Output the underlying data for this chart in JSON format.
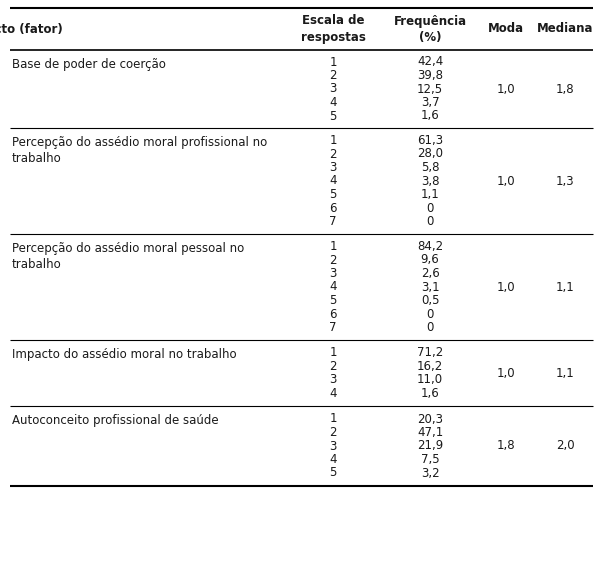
{
  "col_headers": [
    "Aspecto (fator)",
    "Escala de\nrespostas",
    "Frequência\n(%)",
    "Moda",
    "Mediana"
  ],
  "col_header_align": [
    "center",
    "center",
    "center",
    "center",
    "center"
  ],
  "rows": [
    {
      "aspecto": "Base de poder de coerção",
      "escala": [
        "1",
        "2",
        "3",
        "4",
        "5"
      ],
      "frequencia": [
        "42,4",
        "39,8",
        "12,5",
        "3,7",
        "1,6"
      ],
      "moda": "1,0",
      "mediana": "1,8"
    },
    {
      "aspecto": "Percepção do assédio moral profissional no\ntrabalho",
      "escala": [
        "1",
        "2",
        "3",
        "4",
        "5",
        "6",
        "7"
      ],
      "frequencia": [
        "61,3",
        "28,0",
        "5,8",
        "3,8",
        "1,1",
        "0",
        "0"
      ],
      "moda": "1,0",
      "mediana": "1,3"
    },
    {
      "aspecto": "Percepção do assédio moral pessoal no\ntrabalho",
      "escala": [
        "1",
        "2",
        "3",
        "4",
        "5",
        "6",
        "7"
      ],
      "frequencia": [
        "84,2",
        "9,6",
        "2,6",
        "3,1",
        "0,5",
        "0",
        "0"
      ],
      "moda": "1,0",
      "mediana": "1,1"
    },
    {
      "aspecto": "Impacto do assédio moral no trabalho",
      "escala": [
        "1",
        "2",
        "3",
        "4"
      ],
      "frequencia": [
        "71,2",
        "16,2",
        "11,0",
        "1,6"
      ],
      "moda": "1,0",
      "mediana": "1,1"
    },
    {
      "aspecto": "Autoconceito profissional de saúde",
      "escala": [
        "1",
        "2",
        "3",
        "4",
        "5"
      ],
      "frequencia": [
        "20,3",
        "47,1",
        "21,9",
        "7,5",
        "3,2"
      ],
      "moda": "1,8",
      "mediana": "2,0"
    }
  ],
  "bg_color": "#ffffff",
  "text_color": "#1a1a1a",
  "header_fontsize": 8.5,
  "body_fontsize": 8.5,
  "fig_width": 6.03,
  "fig_height": 5.83
}
